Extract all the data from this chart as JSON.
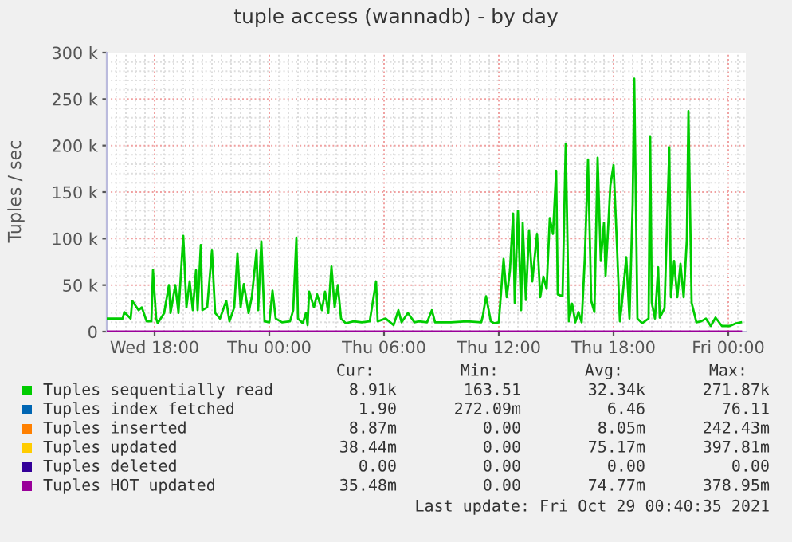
{
  "chart_data": {
    "type": "line",
    "title": "tuple access (wannadb) - by day",
    "ylabel": "Tuples / sec",
    "xlim": [
      "2021-10-27T15:30",
      "2021-10-29T00:55"
    ],
    "ylim": [
      0,
      300000
    ],
    "xticks": [
      {
        "value": "2021-10-27T18:00",
        "label": "Wed 18:00"
      },
      {
        "value": "2021-10-28T00:00",
        "label": "Thu 00:00"
      },
      {
        "value": "2021-10-28T06:00",
        "label": "Thu 06:00"
      },
      {
        "value": "2021-10-28T12:00",
        "label": "Thu 12:00"
      },
      {
        "value": "2021-10-28T18:00",
        "label": "Thu 18:00"
      },
      {
        "value": "2021-10-29T00:00",
        "label": "Fri 00:00"
      }
    ],
    "yticks": [
      {
        "value": 0,
        "label": "0"
      },
      {
        "value": 50000,
        "label": "50 k"
      },
      {
        "value": 100000,
        "label": "100 k"
      },
      {
        "value": 150000,
        "label": "150 k"
      },
      {
        "value": 200000,
        "label": "200 k"
      },
      {
        "value": 250000,
        "label": "250 k"
      },
      {
        "value": 300000,
        "label": "300 k"
      }
    ],
    "grid": true,
    "legend": "bottom",
    "series": [
      {
        "name": "Tuples sequentially read",
        "color": "#00cc00",
        "x": [
          "2021-10-27T15:30",
          "2021-10-27T16:20",
          "2021-10-27T16:25",
          "2021-10-27T16:45",
          "2021-10-27T16:50",
          "2021-10-27T17:10",
          "2021-10-27T17:20",
          "2021-10-27T17:35",
          "2021-10-27T17:50",
          "2021-10-27T17:55",
          "2021-10-27T18:05",
          "2021-10-27T18:10",
          "2021-10-27T18:30",
          "2021-10-27T18:45",
          "2021-10-27T18:50",
          "2021-10-27T19:05",
          "2021-10-27T19:15",
          "2021-10-27T19:30",
          "2021-10-27T19:40",
          "2021-10-27T19:50",
          "2021-10-27T20:00",
          "2021-10-27T20:10",
          "2021-10-27T20:15",
          "2021-10-27T20:25",
          "2021-10-27T20:30",
          "2021-10-27T20:45",
          "2021-10-27T21:00",
          "2021-10-27T21:10",
          "2021-10-27T21:25",
          "2021-10-27T21:45",
          "2021-10-27T21:55",
          "2021-10-27T22:10",
          "2021-10-27T22:20",
          "2021-10-27T22:30",
          "2021-10-27T22:40",
          "2021-10-27T22:55",
          "2021-10-27T23:05",
          "2021-10-27T23:20",
          "2021-10-27T23:25",
          "2021-10-27T23:35",
          "2021-10-27T23:45",
          "2021-10-28T00:00",
          "2021-10-28T00:10",
          "2021-10-28T00:20",
          "2021-10-28T00:40",
          "2021-10-28T01:05",
          "2021-10-28T01:15",
          "2021-10-28T01:25",
          "2021-10-28T01:30",
          "2021-10-28T01:45",
          "2021-10-28T01:55",
          "2021-10-28T02:00",
          "2021-10-28T02:05",
          "2021-10-28T02:20",
          "2021-10-28T02:30",
          "2021-10-28T02:45",
          "2021-10-28T02:55",
          "2021-10-28T03:05",
          "2021-10-28T03:15",
          "2021-10-28T03:25",
          "2021-10-28T03:35",
          "2021-10-28T03:45",
          "2021-10-28T04:00",
          "2021-10-28T04:25",
          "2021-10-28T04:50",
          "2021-10-28T05:15",
          "2021-10-28T05:35",
          "2021-10-28T05:40",
          "2021-10-28T06:05",
          "2021-10-28T06:30",
          "2021-10-28T06:45",
          "2021-10-28T06:55",
          "2021-10-28T07:15",
          "2021-10-28T07:35",
          "2021-10-28T07:50",
          "2021-10-28T08:15",
          "2021-10-28T08:30",
          "2021-10-28T08:40",
          "2021-10-28T09:30",
          "2021-10-28T10:20",
          "2021-10-28T11:05",
          "2021-10-28T11:10",
          "2021-10-28T11:20",
          "2021-10-28T11:35",
          "2021-10-28T11:45",
          "2021-10-28T12:00",
          "2021-10-28T12:15",
          "2021-10-28T12:25",
          "2021-10-28T12:35",
          "2021-10-28T12:45",
          "2021-10-28T12:50",
          "2021-10-28T13:00",
          "2021-10-28T13:10",
          "2021-10-28T13:15",
          "2021-10-28T13:25",
          "2021-10-28T13:35",
          "2021-10-28T13:45",
          "2021-10-28T14:00",
          "2021-10-28T14:10",
          "2021-10-28T14:20",
          "2021-10-28T14:30",
          "2021-10-28T14:40",
          "2021-10-28T14:50",
          "2021-10-28T15:00",
          "2021-10-28T15:05",
          "2021-10-28T15:20",
          "2021-10-28T15:30",
          "2021-10-28T15:40",
          "2021-10-28T15:50",
          "2021-10-28T16:00",
          "2021-10-28T16:10",
          "2021-10-28T16:20",
          "2021-10-28T16:30",
          "2021-10-28T16:40",
          "2021-10-28T16:50",
          "2021-10-28T17:00",
          "2021-10-28T17:10",
          "2021-10-28T17:20",
          "2021-10-28T17:30",
          "2021-10-28T17:35",
          "2021-10-28T17:45",
          "2021-10-28T17:50",
          "2021-10-28T18:00",
          "2021-10-28T18:10",
          "2021-10-28T18:20",
          "2021-10-28T18:25",
          "2021-10-28T18:40",
          "2021-10-28T18:50",
          "2021-10-28T19:00",
          "2021-10-28T19:05",
          "2021-10-28T19:15",
          "2021-10-28T19:30",
          "2021-10-28T19:50",
          "2021-10-28T19:55",
          "2021-10-28T20:00",
          "2021-10-28T20:10",
          "2021-10-28T20:20",
          "2021-10-28T20:25",
          "2021-10-28T20:40",
          "2021-10-28T20:55",
          "2021-10-28T21:00",
          "2021-10-28T21:10",
          "2021-10-28T21:20",
          "2021-10-28T21:30",
          "2021-10-28T21:40",
          "2021-10-28T21:50",
          "2021-10-28T21:55",
          "2021-10-28T22:05",
          "2021-10-28T22:20",
          "2021-10-28T22:35",
          "2021-10-28T22:50",
          "2021-10-28T23:05",
          "2021-10-28T23:20",
          "2021-10-28T23:40",
          "2021-10-29T00:05",
          "2021-10-29T00:25",
          "2021-10-29T00:40"
        ],
        "values": [
          14000,
          14000,
          21000,
          14000,
          33000,
          23000,
          26000,
          11000,
          11000,
          66000,
          14000,
          9000,
          20000,
          50000,
          20000,
          50000,
          20000,
          103000,
          26000,
          54000,
          23000,
          66000,
          23000,
          93000,
          23000,
          26000,
          87000,
          20000,
          14000,
          33000,
          11000,
          26000,
          84000,
          26000,
          51000,
          20000,
          37000,
          87000,
          23000,
          97000,
          11000,
          10000,
          44000,
          14000,
          10000,
          11000,
          23000,
          101000,
          14000,
          9000,
          20000,
          7000,
          43000,
          26000,
          40000,
          23000,
          43000,
          20000,
          70000,
          26000,
          50000,
          14000,
          9000,
          11000,
          10000,
          11000,
          54000,
          11000,
          14000,
          7000,
          23000,
          10000,
          20000,
          10000,
          11000,
          10000,
          23000,
          10000,
          10000,
          11000,
          10000,
          17000,
          38000,
          11000,
          9000,
          10000,
          78000,
          37000,
          66000,
          127000,
          31000,
          130000,
          23000,
          117000,
          34000,
          109000,
          54000,
          105000,
          37000,
          59000,
          46000,
          122000,
          105000,
          173000,
          40000,
          38000,
          202000,
          11000,
          30000,
          10000,
          21000,
          10000,
          80000,
          185000,
          33000,
          21000,
          187000,
          76000,
          117000,
          60000,
          124000,
          157000,
          179000,
          99000,
          11000,
          26000,
          80000,
          14000,
          137000,
          272000,
          14000,
          9000,
          14000,
          210000,
          31000,
          14000,
          69000,
          15000,
          25000,
          198000,
          37000,
          76000,
          37000,
          73000,
          37000,
          99000,
          237000,
          31000,
          10000,
          11000,
          14000,
          6000,
          15000,
          6000,
          6000,
          9000,
          10000
        ]
      },
      {
        "name": "Tuples index fetched",
        "color": "#0066b3"
      },
      {
        "name": "Tuples inserted",
        "color": "#ff8000"
      },
      {
        "name": "Tuples updated",
        "color": "#ffcc00"
      },
      {
        "name": "Tuples deleted",
        "color": "#330099"
      },
      {
        "name": "Tuples HOT updated",
        "color": "#990099",
        "x": [
          "2021-10-27T15:30",
          "2021-10-29T00:40"
        ],
        "values": [
          0,
          0
        ]
      }
    ],
    "annotations": [
      "Cur:",
      "Min:",
      "Avg:",
      "Max:",
      "8.91k",
      "163.51",
      "32.34k",
      "271.87k",
      "1.90",
      "272.09m",
      "6.46",
      "76.11",
      "8.87m",
      "0.00",
      "8.05m",
      "242.43m",
      "38.44m",
      "0.00",
      "75.17m",
      "397.81m",
      "0.00",
      "0.00",
      "0.00",
      "0.00",
      "35.48m",
      "0.00",
      "74.77m",
      "378.95m",
      "Last update: Fri Oct 29 00:40:35 2021"
    ]
  }
}
